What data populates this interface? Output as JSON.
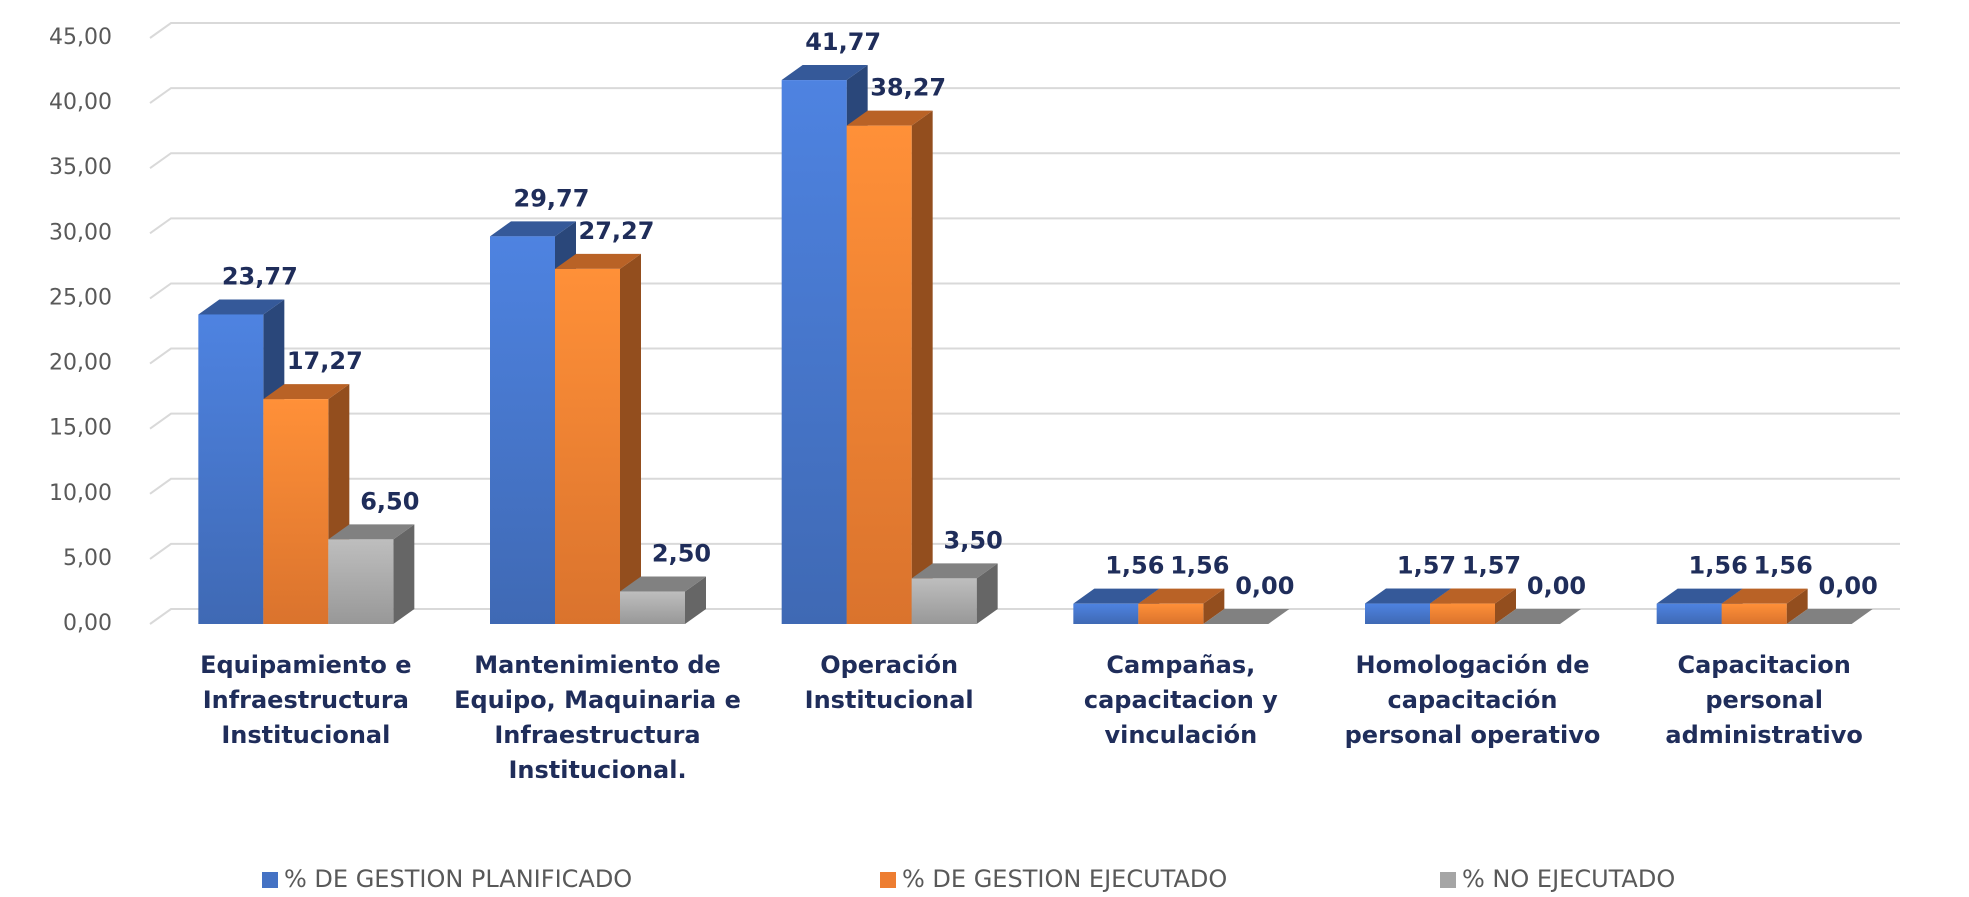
{
  "chart_data": {
    "type": "bar3d",
    "categories": [
      "Equipamiento e Infraestructura Institucional",
      "Mantenimiento de Equipo, Maquinaria e Infraestructura Institucional.",
      "Operación Institucional",
      "Campañas, capacitacion y vinculación",
      "Homologación de capacitación personal operativo",
      "Capacitacion personal administrativo"
    ],
    "series": [
      {
        "name": "% DE GESTION PLANIFICADO",
        "color": "#4472c4",
        "values": [
          23.77,
          29.77,
          41.77,
          1.56,
          1.57,
          1.56
        ],
        "value_labels": [
          "23,77",
          "29,77",
          "41,77",
          "1,56",
          "1,57",
          "1,56"
        ]
      },
      {
        "name": "% DE GESTION EJECUTADO",
        "color": "#ed7d31",
        "values": [
          17.27,
          27.27,
          38.27,
          1.56,
          1.57,
          1.56
        ],
        "value_labels": [
          "17,27",
          "27,27",
          "38,27",
          "1,56",
          "1,57",
          "1,56"
        ]
      },
      {
        "name": "% NO EJECUTADO",
        "color": "#a5a5a5",
        "values": [
          6.5,
          2.5,
          3.5,
          0,
          0,
          0
        ],
        "value_labels": [
          "6,50",
          "2,50",
          "3,50",
          "0,00",
          "0,00",
          "0,00"
        ]
      }
    ],
    "ylim": [
      0,
      45
    ],
    "yticks": [
      {
        "value": 0,
        "label": "0,00"
      },
      {
        "value": 5,
        "label": "5,00"
      },
      {
        "value": 10,
        "label": "10,00"
      },
      {
        "value": 15,
        "label": "15,00"
      },
      {
        "value": 20,
        "label": "20,00"
      },
      {
        "value": 25,
        "label": "25,00"
      },
      {
        "value": 30,
        "label": "30,00"
      },
      {
        "value": 35,
        "label": "35,00"
      },
      {
        "value": 40,
        "label": "40,00"
      },
      {
        "value": 45,
        "label": "45,00"
      }
    ],
    "grid": true,
    "legend": "bottom"
  }
}
